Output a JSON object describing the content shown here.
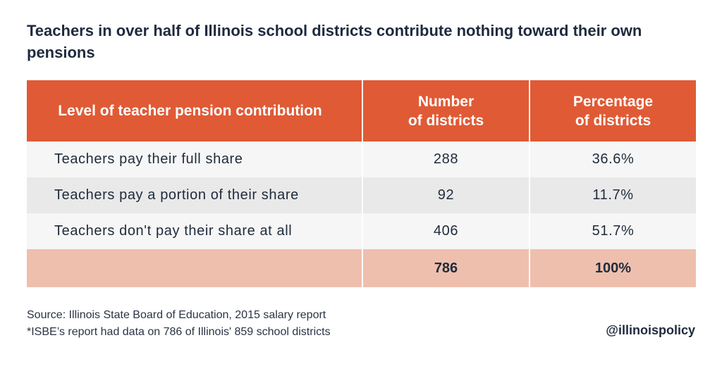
{
  "title": "Teachers in over half of Illinois school districts contribute nothing toward their own pensions",
  "chart_data": {
    "type": "table",
    "columns": [
      {
        "label": "Level of teacher pension contribution"
      },
      {
        "label_line1": "Number",
        "label_line2": "of districts"
      },
      {
        "label_line1": "Percentage",
        "label_line2": "of districts"
      }
    ],
    "rows": [
      {
        "level": "Teachers pay their full share",
        "districts": "288",
        "percentage": "36.6%"
      },
      {
        "level": "Teachers pay a portion of their share",
        "districts": "92",
        "percentage": "11.7%"
      },
      {
        "level": "Teachers don't pay their share at all",
        "districts": "406",
        "percentage": "51.7%"
      }
    ],
    "total": {
      "level": "",
      "districts": "786",
      "percentage": "100%"
    }
  },
  "footer": {
    "source": "Source: Illinois State Board of Education, 2015 salary report",
    "note": "*ISBE’s report had data on 786 of Illinois' 859 school districts"
  },
  "handle": "@illinoispolicy",
  "colors": {
    "header": "#e05a35",
    "total_row": "#efbfae",
    "row_light": "#f6f6f6",
    "row_dark": "#e9e9e9",
    "title_text": "#1e2a3e"
  }
}
